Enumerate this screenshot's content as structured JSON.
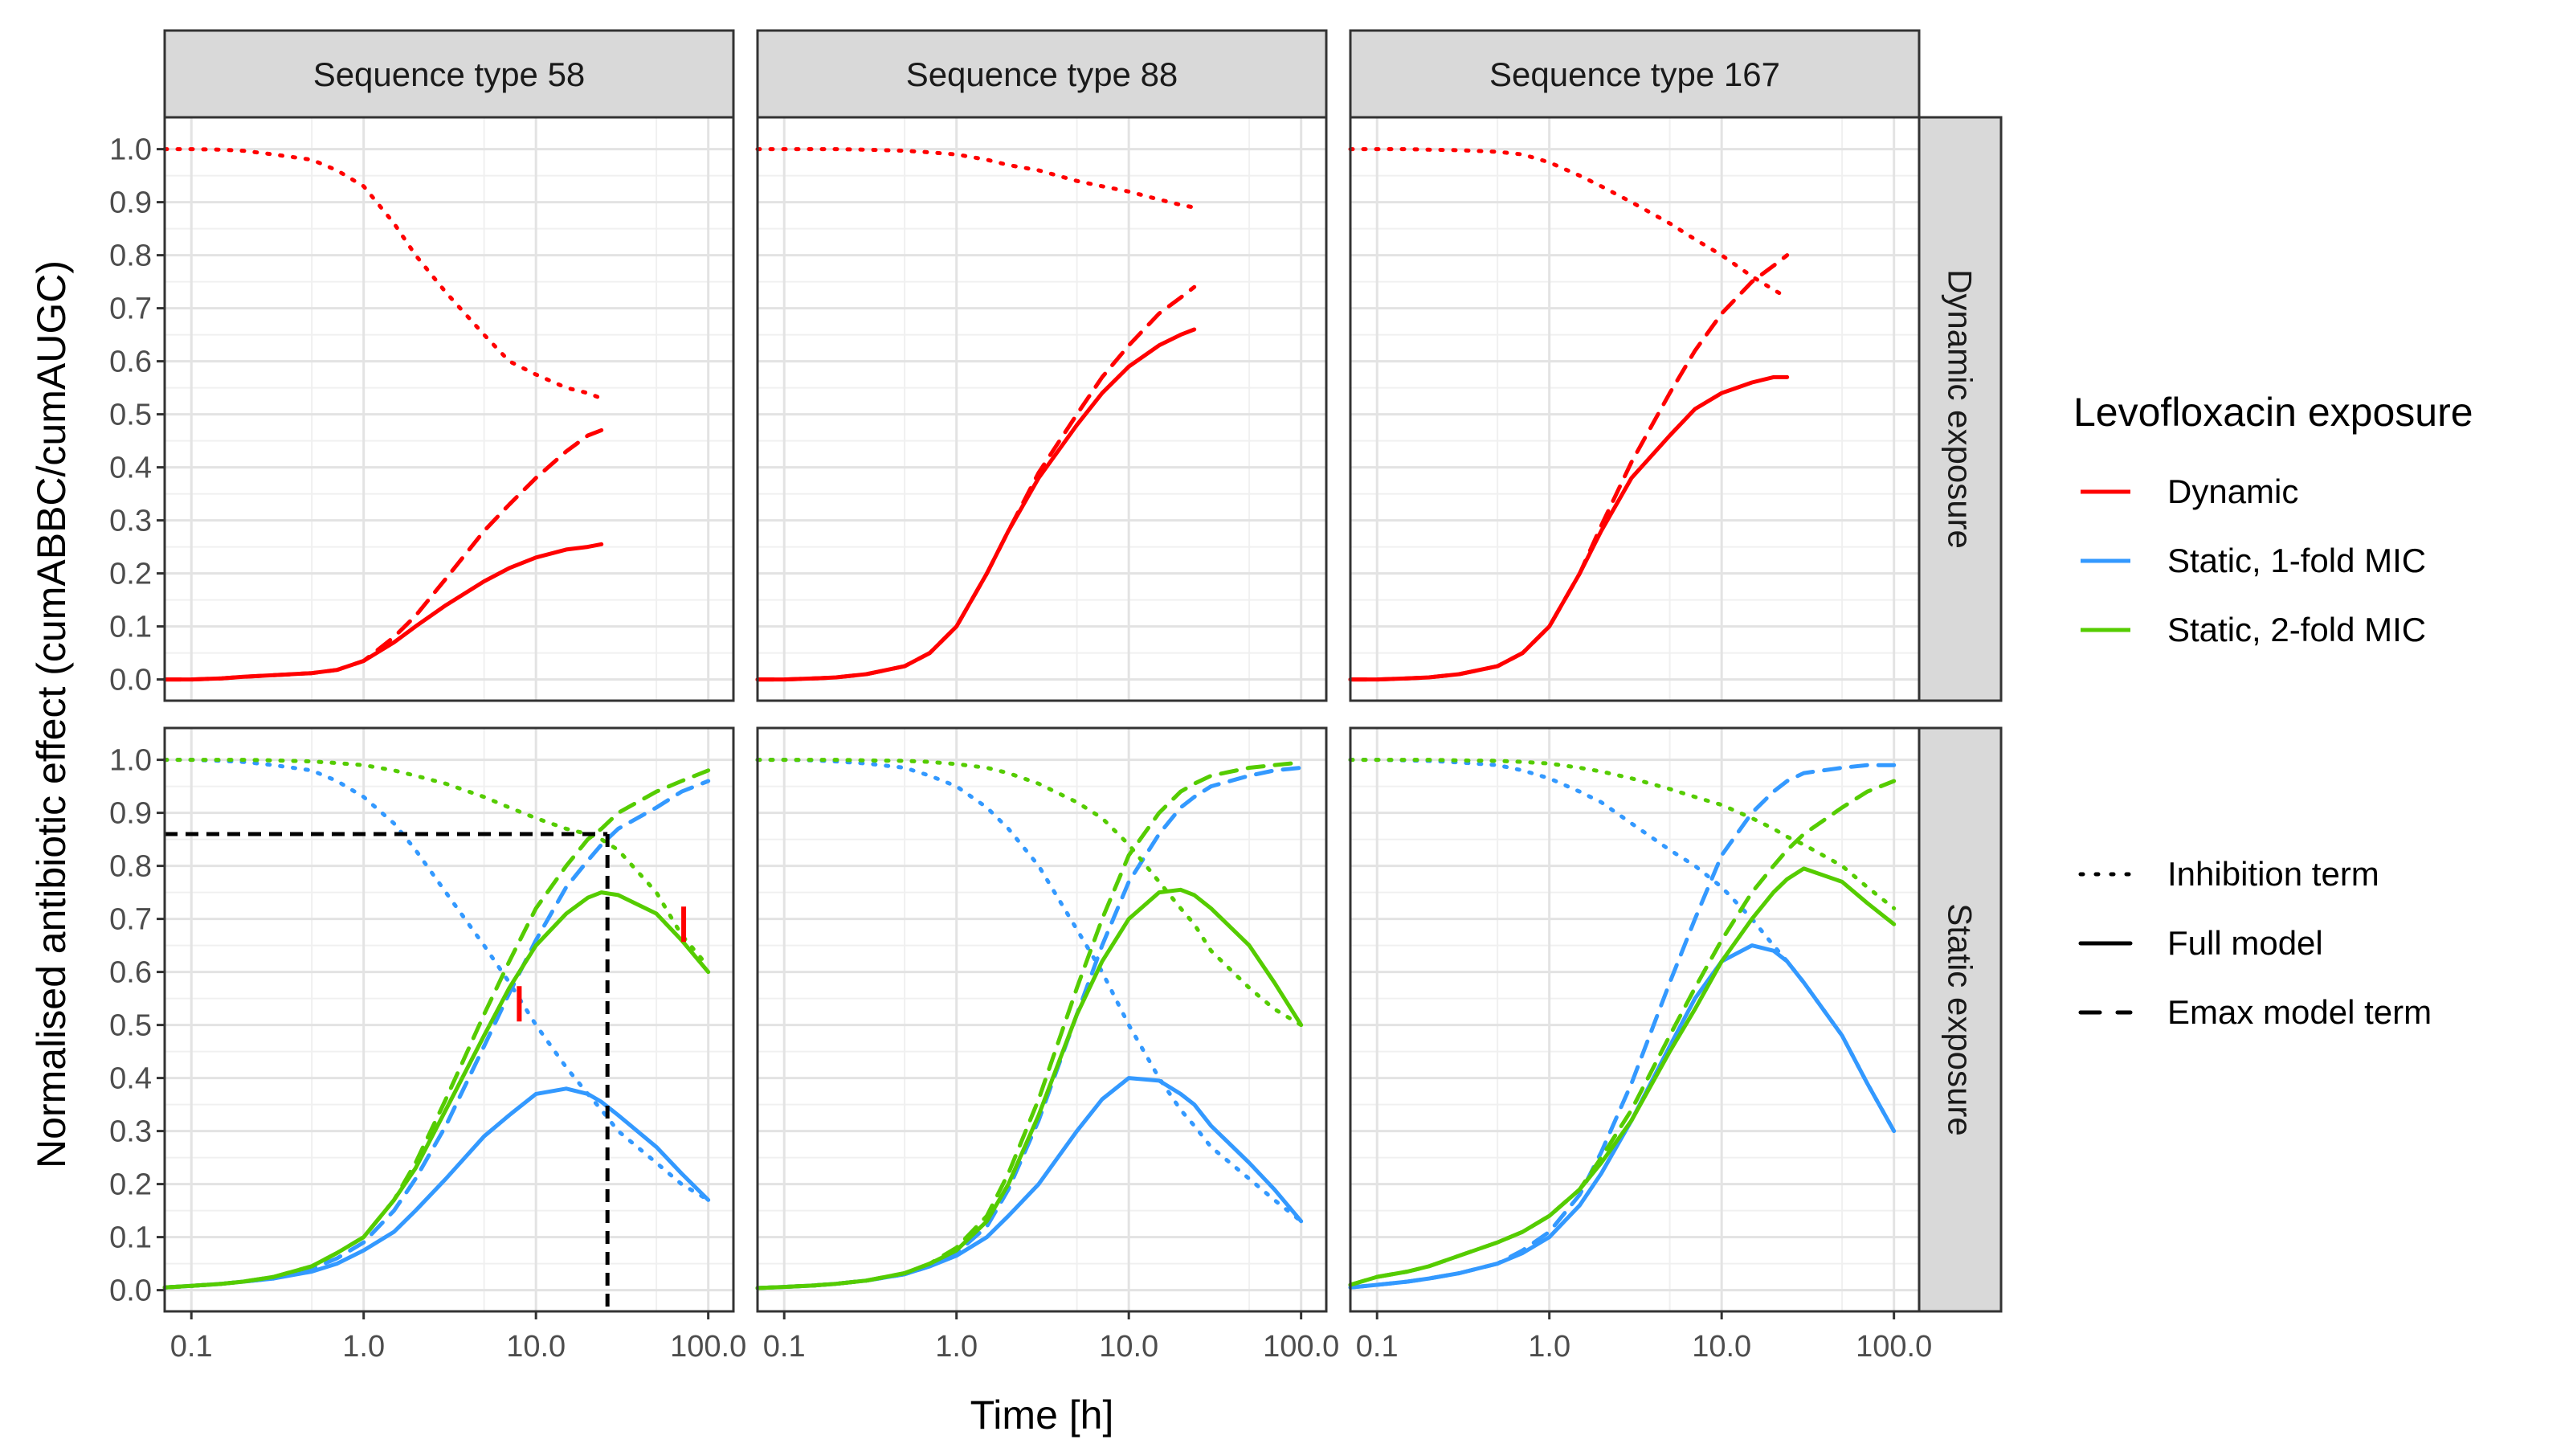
{
  "chart_data": {
    "type": "line",
    "x_scale": "log10",
    "xlim": [
      0.07,
      140
    ],
    "ylim": [
      -0.04,
      1.06
    ],
    "x_ticks": [
      0.1,
      1,
      10,
      100
    ],
    "x_tick_labels": [
      "0.1",
      "1.0",
      "10.0",
      "100.0"
    ],
    "y_ticks": [
      0,
      0.1,
      0.2,
      0.3,
      0.4,
      0.5,
      0.6,
      0.7,
      0.8,
      0.9,
      1.0
    ],
    "y_tick_labels": [
      "0.0",
      "0.1",
      "0.2",
      "0.3",
      "0.4",
      "0.5",
      "0.6",
      "0.7",
      "0.8",
      "0.9",
      "1.0"
    ],
    "xlabel": "Time [h]",
    "ylabel": "Normalised antibiotic effect (cumABBC/cumAUGC)",
    "column_strips": [
      "Sequence type 58",
      "Sequence type 88",
      "Sequence type 167"
    ],
    "row_strips": [
      "Dynamic exposure",
      "Static exposure"
    ],
    "colors": {
      "Dynamic": "#ff0000",
      "Static, 1-fold MIC": "#3399ff",
      "Static, 2-fold MIC": "#55cc00",
      "reference": "#000000"
    },
    "legend_color": {
      "title": "Levofloxacin exposure",
      "position": "right",
      "items": [
        {
          "label": "Dynamic",
          "color": "#ff0000"
        },
        {
          "label": "Static, 1-fold MIC",
          "color": "#3399ff"
        },
        {
          "label": "Static, 2-fold MIC",
          "color": "#55cc00"
        }
      ]
    },
    "legend_linetype": {
      "items": [
        {
          "label": "Inhibition term",
          "dash": "dotted"
        },
        {
          "label": "Full model",
          "dash": "solid"
        },
        {
          "label": "Emax model term",
          "dash": "dashed"
        }
      ]
    },
    "x": [
      0.07,
      0.1,
      0.15,
      0.2,
      0.3,
      0.5,
      0.7,
      1,
      1.5,
      2,
      3,
      5,
      7,
      10,
      15,
      20,
      24,
      30,
      50,
      70,
      100
    ],
    "panels": [
      {
        "row": "Dynamic exposure",
        "column": "Sequence type 58",
        "series": [
          {
            "exposure": "Dynamic",
            "term": "Inhibition term",
            "values": [
              1.0,
              1.0,
              0.999,
              0.997,
              0.99,
              0.98,
              0.96,
              0.93,
              0.86,
              0.8,
              0.73,
              0.65,
              0.6,
              0.575,
              0.55,
              0.54,
              0.53,
              null,
              null,
              null,
              null
            ]
          },
          {
            "exposure": "Dynamic",
            "term": "Full model",
            "values": [
              0.0,
              0.0,
              0.002,
              0.005,
              0.008,
              0.012,
              0.018,
              0.035,
              0.07,
              0.1,
              0.14,
              0.185,
              0.21,
              0.23,
              0.245,
              0.25,
              0.255,
              null,
              null,
              null,
              null
            ]
          },
          {
            "exposure": "Dynamic",
            "term": "Emax model term",
            "values": [
              0.0,
              0.0,
              0.002,
              0.005,
              0.008,
              0.012,
              0.018,
              0.035,
              0.08,
              0.12,
              0.19,
              0.28,
              0.33,
              0.38,
              0.43,
              0.46,
              0.47,
              null,
              null,
              null,
              null
            ]
          }
        ]
      },
      {
        "row": "Dynamic exposure",
        "column": "Sequence type 88",
        "series": [
          {
            "exposure": "Dynamic",
            "term": "Inhibition term",
            "values": [
              1.0,
              1.0,
              1.0,
              1.0,
              0.999,
              0.997,
              0.994,
              0.99,
              0.98,
              0.97,
              0.96,
              0.94,
              0.93,
              0.92,
              0.905,
              0.895,
              0.89,
              null,
              null,
              null,
              null
            ]
          },
          {
            "exposure": "Dynamic",
            "term": "Full model",
            "values": [
              0.0,
              0.0,
              0.002,
              0.004,
              0.01,
              0.025,
              0.05,
              0.1,
              0.2,
              0.28,
              0.38,
              0.48,
              0.54,
              0.59,
              0.63,
              0.65,
              0.66,
              null,
              null,
              null,
              null
            ]
          },
          {
            "exposure": "Dynamic",
            "term": "Emax model term",
            "values": [
              0.0,
              0.0,
              0.002,
              0.004,
              0.01,
              0.025,
              0.05,
              0.1,
              0.2,
              0.28,
              0.39,
              0.5,
              0.57,
              0.63,
              0.69,
              0.72,
              0.74,
              null,
              null,
              null,
              null
            ]
          }
        ]
      },
      {
        "row": "Dynamic exposure",
        "column": "Sequence type 167",
        "series": [
          {
            "exposure": "Dynamic",
            "term": "Inhibition term",
            "values": [
              1.0,
              1.0,
              1.0,
              0.999,
              0.998,
              0.995,
              0.99,
              0.975,
              0.95,
              0.93,
              0.9,
              0.86,
              0.83,
              0.8,
              0.76,
              0.735,
              0.72,
              null,
              null,
              null,
              null
            ]
          },
          {
            "exposure": "Dynamic",
            "term": "Full model",
            "values": [
              0.0,
              0.0,
              0.002,
              0.004,
              0.01,
              0.025,
              0.05,
              0.1,
              0.2,
              0.28,
              0.38,
              0.46,
              0.51,
              0.54,
              0.56,
              0.57,
              0.57,
              null,
              null,
              null,
              null
            ]
          },
          {
            "exposure": "Dynamic",
            "term": "Emax model term",
            "values": [
              0.0,
              0.0,
              0.002,
              0.004,
              0.01,
              0.025,
              0.05,
              0.1,
              0.2,
              0.29,
              0.41,
              0.54,
              0.62,
              0.69,
              0.75,
              0.78,
              0.8,
              null,
              null,
              null,
              null
            ]
          }
        ]
      },
      {
        "row": "Static exposure",
        "column": "Sequence type 58",
        "series": [
          {
            "exposure": "Static, 1-fold MIC",
            "term": "Inhibition term",
            "values": [
              1.0,
              1.0,
              0.998,
              0.996,
              0.99,
              0.98,
              0.96,
              0.93,
              0.88,
              0.83,
              0.75,
              0.65,
              0.58,
              0.5,
              0.42,
              0.37,
              0.34,
              0.3,
              0.24,
              0.2,
              0.17
            ]
          },
          {
            "exposure": "Static, 1-fold MIC",
            "term": "Full model",
            "values": [
              0.005,
              0.008,
              0.012,
              0.016,
              0.022,
              0.035,
              0.05,
              0.075,
              0.11,
              0.15,
              0.21,
              0.29,
              0.33,
              0.37,
              0.38,
              0.37,
              0.355,
              0.33,
              0.27,
              0.22,
              0.17
            ]
          },
          {
            "exposure": "Static, 1-fold MIC",
            "term": "Emax model term",
            "values": [
              0.005,
              0.008,
              0.012,
              0.016,
              0.022,
              0.04,
              0.06,
              0.09,
              0.15,
              0.21,
              0.31,
              0.46,
              0.56,
              0.66,
              0.76,
              0.81,
              0.84,
              0.87,
              0.91,
              0.94,
              0.96
            ]
          },
          {
            "exposure": "Static, 2-fold MIC",
            "term": "Inhibition term",
            "values": [
              1.0,
              1.0,
              1.0,
              1.0,
              0.999,
              0.997,
              0.994,
              0.99,
              0.98,
              0.97,
              0.955,
              0.93,
              0.91,
              0.89,
              0.87,
              0.86,
              0.85,
              0.83,
              0.75,
              0.67,
              0.61
            ]
          },
          {
            "exposure": "Static, 2-fold MIC",
            "term": "Full model",
            "values": [
              0.005,
              0.008,
              0.012,
              0.016,
              0.025,
              0.045,
              0.07,
              0.1,
              0.17,
              0.23,
              0.34,
              0.48,
              0.57,
              0.65,
              0.71,
              0.74,
              0.75,
              0.745,
              0.71,
              0.66,
              0.6
            ]
          },
          {
            "exposure": "Static, 2-fold MIC",
            "term": "Emax model term",
            "values": [
              0.005,
              0.008,
              0.012,
              0.016,
              0.025,
              0.045,
              0.07,
              0.1,
              0.17,
              0.24,
              0.36,
              0.52,
              0.62,
              0.72,
              0.8,
              0.85,
              0.87,
              0.9,
              0.94,
              0.96,
              0.98
            ]
          }
        ],
        "annotations": {
          "reference_lines": {
            "y": 0.86,
            "x": 26
          },
          "red_tick_marks": [
            {
              "x": 8,
              "y": 0.54
            },
            {
              "x": 72,
              "y": 0.69
            }
          ]
        }
      },
      {
        "row": "Static exposure",
        "column": "Sequence type 88",
        "series": [
          {
            "exposure": "Static, 1-fold MIC",
            "term": "Inhibition term",
            "values": [
              1.0,
              1.0,
              0.999,
              0.997,
              0.993,
              0.985,
              0.97,
              0.95,
              0.91,
              0.87,
              0.8,
              0.68,
              0.6,
              0.5,
              0.4,
              0.34,
              0.31,
              0.27,
              0.21,
              0.17,
              0.13
            ]
          },
          {
            "exposure": "Static, 1-fold MIC",
            "term": "Full model",
            "values": [
              0.004,
              0.006,
              0.009,
              0.012,
              0.018,
              0.03,
              0.045,
              0.065,
              0.1,
              0.14,
              0.2,
              0.3,
              0.36,
              0.4,
              0.395,
              0.37,
              0.35,
              0.31,
              0.24,
              0.19,
              0.13
            ]
          },
          {
            "exposure": "Static, 1-fold MIC",
            "term": "Emax model term",
            "values": [
              0.004,
              0.006,
              0.009,
              0.012,
              0.018,
              0.03,
              0.045,
              0.07,
              0.12,
              0.19,
              0.32,
              0.52,
              0.65,
              0.77,
              0.86,
              0.91,
              0.93,
              0.95,
              0.97,
              0.98,
              0.985
            ]
          },
          {
            "exposure": "Static, 2-fold MIC",
            "term": "Inhibition term",
            "values": [
              1.0,
              1.0,
              1.0,
              1.0,
              0.999,
              0.998,
              0.996,
              0.992,
              0.985,
              0.975,
              0.955,
              0.92,
              0.89,
              0.84,
              0.77,
              0.72,
              0.69,
              0.64,
              0.57,
              0.53,
              0.5
            ]
          },
          {
            "exposure": "Static, 2-fold MIC",
            "term": "Full model",
            "values": [
              0.004,
              0.006,
              0.009,
              0.012,
              0.018,
              0.032,
              0.05,
              0.075,
              0.13,
              0.2,
              0.33,
              0.52,
              0.62,
              0.7,
              0.75,
              0.755,
              0.745,
              0.72,
              0.65,
              0.58,
              0.5
            ]
          },
          {
            "exposure": "Static, 2-fold MIC",
            "term": "Emax model term",
            "values": [
              0.004,
              0.006,
              0.009,
              0.012,
              0.018,
              0.032,
              0.05,
              0.08,
              0.14,
              0.22,
              0.36,
              0.57,
              0.7,
              0.82,
              0.9,
              0.94,
              0.955,
              0.97,
              0.985,
              0.99,
              0.995
            ]
          }
        ]
      },
      {
        "row": "Static exposure",
        "column": "Sequence type 167",
        "series": [
          {
            "exposure": "Static, 1-fold MIC",
            "term": "Inhibition term",
            "values": [
              1.0,
              1.0,
              0.999,
              0.998,
              0.995,
              0.99,
              0.98,
              0.965,
              0.94,
              0.92,
              0.88,
              0.83,
              0.8,
              0.76,
              0.7,
              0.65,
              0.62,
              0.58,
              0.48,
              0.39,
              0.3
            ]
          },
          {
            "exposure": "Static, 1-fold MIC",
            "term": "Full model",
            "values": [
              0.005,
              0.01,
              0.016,
              0.022,
              0.032,
              0.05,
              0.07,
              0.1,
              0.16,
              0.22,
              0.32,
              0.46,
              0.55,
              0.62,
              0.65,
              0.64,
              0.62,
              0.58,
              0.48,
              0.39,
              0.3
            ]
          },
          {
            "exposure": "Static, 1-fold MIC",
            "term": "Emax model term",
            "values": [
              0.005,
              0.01,
              0.016,
              0.022,
              0.032,
              0.05,
              0.075,
              0.11,
              0.18,
              0.26,
              0.39,
              0.58,
              0.7,
              0.82,
              0.9,
              0.94,
              0.96,
              0.975,
              0.985,
              0.99,
              0.99
            ]
          },
          {
            "exposure": "Static, 2-fold MIC",
            "term": "Inhibition term",
            "values": [
              1.0,
              1.0,
              1.0,
              1.0,
              0.999,
              0.998,
              0.996,
              0.993,
              0.985,
              0.978,
              0.965,
              0.945,
              0.93,
              0.915,
              0.89,
              0.87,
              0.855,
              0.84,
              0.8,
              0.76,
              0.72
            ]
          },
          {
            "exposure": "Static, 2-fold MIC",
            "term": "Full model",
            "values": [
              0.01,
              0.025,
              0.035,
              0.045,
              0.065,
              0.09,
              0.11,
              0.14,
              0.19,
              0.24,
              0.32,
              0.45,
              0.53,
              0.62,
              0.7,
              0.75,
              0.775,
              0.795,
              0.77,
              0.73,
              0.69
            ]
          },
          {
            "exposure": "Static, 2-fold MIC",
            "term": "Emax model term",
            "values": [
              0.01,
              0.025,
              0.035,
              0.045,
              0.065,
              0.09,
              0.11,
              0.14,
              0.19,
              0.25,
              0.34,
              0.48,
              0.57,
              0.66,
              0.75,
              0.8,
              0.83,
              0.86,
              0.91,
              0.94,
              0.96
            ]
          }
        ]
      }
    ]
  }
}
